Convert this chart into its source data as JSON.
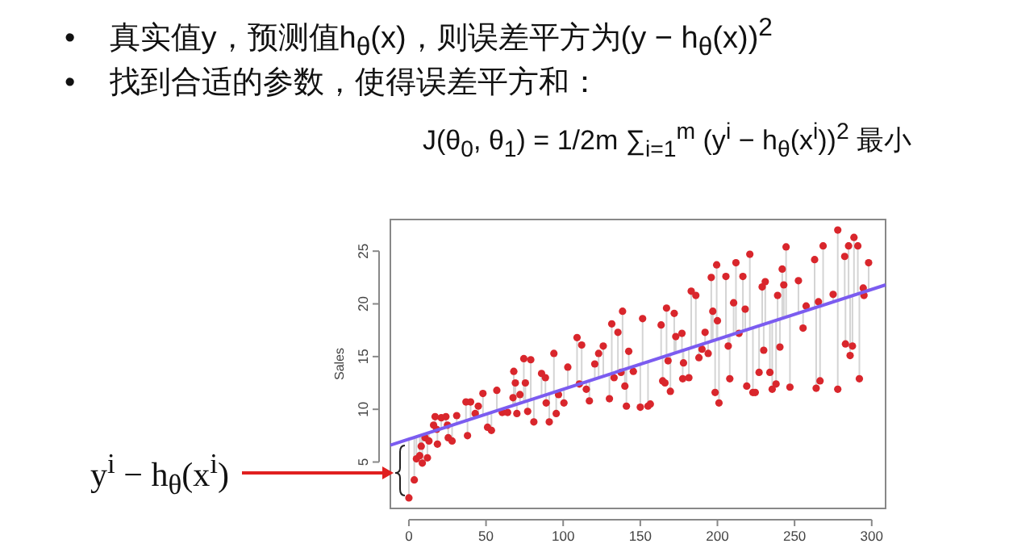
{
  "chart_data": {
    "type": "scatter",
    "ylabel": "Sales",
    "annotations": [
      "•    真实值y，预测值h$_{θ}$(x)，则误差平方为(y − h$_{θ}$(x))$^{2}$",
      "•    找到合适的参数，使得误差平方和：",
      "J(θ$_{0}$, θ$_{1}$) = 1/2m ∑$_{i=1}$$^{m}$ (y$^{i}$ − h$_{θ}$(x$^{i}$))$^{2}$ 最小",
      "y$^{i}$ − h$_{θ}$(x$^{i}$)"
    ],
    "xlim": [
      -12,
      309
    ],
    "ylim": [
      0.6,
      28
    ],
    "xticks": [
      0,
      50,
      100,
      150,
      200,
      250,
      300
    ],
    "yticks": [
      5,
      10,
      15,
      20,
      25
    ],
    "marker": "circle",
    "series": [
      {
        "type": "scatter",
        "color": "#d9262c",
        "x": [
          0,
          3.5,
          4.9,
          7,
          8,
          8.7,
          10.5,
          12,
          13,
          16,
          17,
          18,
          18.5,
          21,
          24,
          25,
          25.5,
          28,
          31,
          37,
          38,
          40,
          43,
          45,
          48,
          51,
          53.5,
          57,
          60.5,
          64,
          67.5,
          68,
          69,
          70,
          72,
          74.5,
          75.5,
          77,
          79,
          81,
          86,
          88.5,
          89,
          91,
          94,
          95.5,
          97,
          100.5,
          103,
          109,
          110.5,
          112,
          115,
          117,
          120.5,
          123,
          126,
          130,
          131.5,
          133,
          135.5,
          137.5,
          138.5,
          140,
          141,
          142.5,
          145.5,
          150,
          151.5,
          155,
          163.5,
          164.5,
          167,
          156.5,
          166,
          168,
          169.5,
          172,
          173,
          177,
          177.5,
          178,
          181.5,
          183,
          186,
          188,
          190,
          192,
          194,
          196,
          197,
          199.5,
          200,
          198.5,
          201,
          205.5,
          207,
          208,
          210.5,
          212,
          214,
          216.5,
          218,
          219,
          221,
          223,
          224.5,
          227,
          229,
          230,
          231,
          234,
          235.5,
          238,
          239,
          240.5,
          242,
          244.5,
          243,
          247,
          252.5,
          255.5,
          257.5,
          263,
          264,
          265.5,
          266.5,
          268.5,
          275,
          278,
          278,
          282.5,
          283,
          285,
          286,
          287.5,
          288.5,
          291,
          292,
          294.5,
          295,
          298
        ],
        "values": [
          1.6,
          3.3,
          5.3,
          5.6,
          6.5,
          4.9,
          7.3,
          5.4,
          7.0,
          8.5,
          9.3,
          8.1,
          6.7,
          9.2,
          9.3,
          8.5,
          7.3,
          7.0,
          9.4,
          10.7,
          7.5,
          10.7,
          9.6,
          10.3,
          11.5,
          8.3,
          8.0,
          11.8,
          9.7,
          9.7,
          11.1,
          13.6,
          12.5,
          9.6,
          11.4,
          14.8,
          12.5,
          9.8,
          14.7,
          8.8,
          13.4,
          13.0,
          10.6,
          8.8,
          15.3,
          9.6,
          11.4,
          10.6,
          14.0,
          16.8,
          12.4,
          16.1,
          11.9,
          10.8,
          14.3,
          15.3,
          16.0,
          11.0,
          18.1,
          13.0,
          17.3,
          13.5,
          19.3,
          12.2,
          10.3,
          15.5,
          13.6,
          10.2,
          18.6,
          10.3,
          18.0,
          12.7,
          19.6,
          10.5,
          12.5,
          14.6,
          11.7,
          19.1,
          16.9,
          17.2,
          12.9,
          14.4,
          13.0,
          21.2,
          20.8,
          14.9,
          15.7,
          17.3,
          15.3,
          22.5,
          19.3,
          23.7,
          18.4,
          11.6,
          10.6,
          22.6,
          16.0,
          12.9,
          20.1,
          23.9,
          17.2,
          22.6,
          19.5,
          12.2,
          24.7,
          11.6,
          11.6,
          13.5,
          21.6,
          15.6,
          22.1,
          13.5,
          11.9,
          12.4,
          20.8,
          15.9,
          23.3,
          25.4,
          21.8,
          12.1,
          22.2,
          17.7,
          19.8,
          24.2,
          12.0,
          20.2,
          12.7,
          25.5,
          20.9,
          27.0,
          11.9,
          24.5,
          16.2,
          25.5,
          15.1,
          16.0,
          26.3,
          25.5,
          12.9,
          21.5,
          20.8,
          23.9
        ],
        "errors": [
          [
            1.6,
            7.2
          ],
          [
            3.3,
            7.4
          ],
          [
            5.3,
            7.4
          ],
          [
            5.6,
            7.5
          ],
          [
            6.5,
            7.6
          ],
          [
            4.9,
            7.6
          ],
          null,
          [
            5.4,
            7.8
          ],
          [
            7.0,
            7.8
          ],
          null,
          [
            8.0,
            9.3
          ],
          null,
          [
            6.7,
            8.1
          ],
          [
            8.2,
            9.2
          ],
          [
            8.3,
            9.3
          ],
          null,
          [
            7.3,
            8.4
          ],
          [
            7.0,
            8.5
          ],
          [
            8.7,
            9.4
          ],
          [
            8.9,
            10.7
          ],
          [
            7.5,
            9.0
          ],
          [
            9.1,
            10.7
          ],
          null,
          [
            9.3,
            10.3
          ],
          [
            9.4,
            11.5
          ],
          [
            8.3,
            9.6
          ],
          [
            8.0,
            9.7
          ],
          [
            9.9,
            11.8
          ],
          null,
          null,
          [
            10.4,
            11.1
          ],
          [
            10.4,
            13.6
          ],
          [
            10.4,
            12.5
          ],
          [
            9.6,
            10.5
          ],
          [
            10.6,
            11.4
          ],
          [
            10.7,
            14.8
          ],
          [
            10.7,
            12.5
          ],
          [
            9.8,
            10.8
          ],
          [
            10.9,
            14.7
          ],
          [
            8.8,
            11.0
          ],
          [
            11.2,
            13.4
          ],
          [
            11.4,
            13.0
          ],
          [
            10.6,
            11.4
          ],
          [
            8.8,
            11.5
          ],
          [
            11.6,
            15.3
          ],
          [
            9.6,
            11.7
          ],
          null,
          [
            10.6,
            11.9
          ],
          [
            12.0,
            14.0
          ],
          [
            12.3,
            16.8
          ],
          null,
          [
            12.5,
            16.1
          ],
          [
            11.9,
            12.6
          ],
          [
            10.8,
            12.7
          ],
          [
            12.9,
            14.3
          ],
          [
            13.0,
            15.3
          ],
          [
            13.1,
            16.0
          ],
          [
            11.0,
            13.3
          ],
          [
            13.4,
            18.1
          ],
          null,
          [
            13.6,
            17.3
          ],
          null,
          [
            13.7,
            19.3
          ],
          [
            12.2,
            13.8
          ],
          [
            10.3,
            13.8
          ],
          [
            13.9,
            15.5
          ],
          null,
          [
            10.2,
            14.3
          ],
          [
            14.3,
            18.6
          ],
          [
            10.3,
            14.5
          ],
          [
            14.9,
            18.0
          ],
          [
            12.7,
            14.9
          ],
          [
            15.0,
            19.6
          ],
          null,
          null,
          null,
          [
            11.7,
            15.2
          ],
          [
            15.3,
            19.1
          ],
          [
            15.3,
            16.9
          ],
          [
            15.5,
            17.2
          ],
          [
            12.9,
            15.5
          ],
          [
            14.4,
            15.6
          ],
          [
            13.0,
            15.7
          ],
          [
            15.8,
            21.2
          ],
          [
            15.9,
            20.8
          ],
          [
            14.9,
            16.0
          ],
          null,
          [
            16.2,
            17.3
          ],
          [
            15.3,
            16.3
          ],
          [
            16.4,
            22.5
          ],
          [
            16.5,
            19.3
          ],
          [
            16.6,
            23.7
          ],
          [
            16.6,
            18.4
          ],
          [
            11.6,
            16.5
          ],
          [
            10.6,
            16.7
          ],
          [
            16.9,
            22.6
          ],
          [
            16.0,
            17.0
          ],
          [
            12.9,
            17.0
          ],
          [
            17.1,
            20.1
          ],
          [
            17.2,
            23.9
          ],
          null,
          [
            17.4,
            22.6
          ],
          [
            17.5,
            19.5
          ],
          [
            12.2,
            17.5
          ],
          [
            17.6,
            24.7
          ],
          [
            11.6,
            17.7
          ],
          null,
          [
            13.5,
            17.9
          ],
          [
            18.0,
            21.6
          ],
          [
            15.6,
            18.0
          ],
          [
            18.1,
            22.1
          ],
          [
            13.5,
            18.2
          ],
          [
            11.9,
            18.3
          ],
          [
            12.4,
            18.4
          ],
          [
            18.5,
            20.8
          ],
          [
            15.9,
            18.5
          ],
          [
            18.6,
            23.3
          ],
          [
            18.7,
            25.4
          ],
          [
            18.7,
            21.8
          ],
          [
            12.1,
            18.9
          ],
          [
            19.1,
            22.2
          ],
          [
            17.7,
            19.3
          ],
          null,
          [
            19.6,
            24.2
          ],
          [
            12.0,
            19.7
          ],
          null,
          [
            12.7,
            19.8
          ],
          [
            19.9,
            25.5
          ],
          [
            20.2,
            20.9
          ],
          [
            20.3,
            27.0
          ],
          [
            11.9,
            20.3
          ],
          [
            20.5,
            24.5
          ],
          [
            16.2,
            20.5
          ],
          [
            20.6,
            25.5
          ],
          [
            15.1,
            20.7
          ],
          [
            16.0,
            20.7
          ],
          [
            20.8,
            26.3
          ],
          [
            20.9,
            25.5
          ],
          [
            12.9,
            21.0
          ],
          null,
          null,
          [
            21.3,
            23.9
          ]
        ]
      },
      {
        "type": "line",
        "color": "#7b5cf0",
        "marker": "none",
        "x": [
          -12,
          309
        ],
        "values": [
          6.6,
          21.8
        ]
      }
    ]
  }
}
